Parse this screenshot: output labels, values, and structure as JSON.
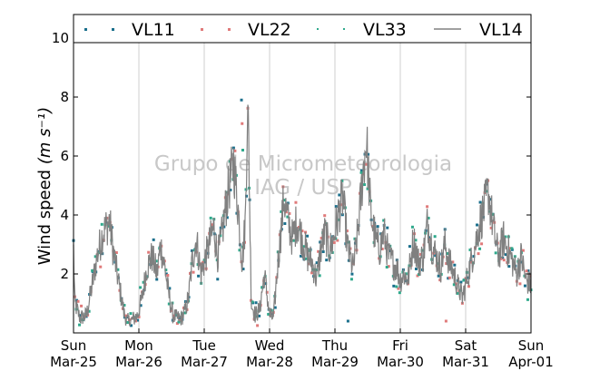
{
  "chart_data": {
    "type": "scatter",
    "title": "",
    "ylabel": "Wind speed",
    "ylabel_unit": "(m s⁻¹)",
    "ylim": [
      0,
      10.8
    ],
    "yticks": [
      2,
      4,
      6,
      8,
      10
    ],
    "xlim": [
      0,
      7
    ],
    "x_ticks": [
      {
        "x": 0,
        "day": "Sun",
        "date": "Mar-25"
      },
      {
        "x": 1,
        "day": "Mon",
        "date": "Mar-26"
      },
      {
        "x": 2,
        "day": "Tue",
        "date": "Mar-27"
      },
      {
        "x": 3,
        "day": "Wed",
        "date": "Mar-28"
      },
      {
        "x": 4,
        "day": "Thu",
        "date": "Mar-29"
      },
      {
        "x": 5,
        "day": "Fri",
        "date": "Mar-30"
      },
      {
        "x": 6,
        "day": "Sat",
        "date": "Mar-31"
      },
      {
        "x": 7,
        "day": "Sun",
        "date": "Apr-01"
      }
    ],
    "grid": "vertical",
    "legend_position": "top",
    "watermark": [
      "Grupo de Micrometeorologia",
      "IAG / USP"
    ],
    "series": [
      {
        "name": "VL11",
        "style": "dots",
        "color": "#1a6f8c"
      },
      {
        "name": "VL22",
        "style": "dots",
        "color": "#e07a7a"
      },
      {
        "name": "VL33",
        "style": "dots",
        "color": "#2fa98c"
      },
      {
        "name": "VL14",
        "style": "line",
        "color": "#808080"
      }
    ],
    "profile_x": [
      0,
      0.02,
      0.1,
      0.2,
      0.3,
      0.36,
      0.45,
      0.55,
      0.62,
      0.7,
      0.78,
      0.82,
      0.88,
      0.93,
      0.98,
      1.05,
      1.12,
      1.2,
      1.28,
      1.33,
      1.4,
      1.45,
      1.52,
      1.58,
      1.65,
      1.7,
      1.76,
      1.82,
      1.88,
      1.95,
      2.05,
      2.15,
      2.2,
      2.25,
      2.35,
      2.45,
      2.52,
      2.58,
      2.63,
      2.66,
      2.68,
      2.72,
      2.78,
      2.85,
      2.92,
      3.0,
      3.06,
      3.12,
      3.18,
      3.22,
      3.28,
      3.35,
      3.42,
      3.5,
      3.58,
      3.65,
      3.72,
      3.78,
      3.85,
      3.92,
      3.98,
      4.05,
      4.12,
      4.2,
      4.28,
      4.35,
      4.42,
      4.48,
      4.55,
      4.62,
      4.68,
      4.75,
      4.82,
      4.88,
      4.95,
      5.0,
      5.05,
      5.12,
      5.2,
      5.28,
      5.35,
      5.42,
      5.48,
      5.55,
      5.62,
      5.68,
      5.75,
      5.82,
      5.88,
      5.95,
      6.02,
      6.08,
      6.15,
      6.2,
      6.28,
      6.35,
      6.42,
      6.5,
      6.58,
      6.65,
      6.72,
      6.78,
      6.85,
      6.92,
      7.0
    ],
    "profile_y": [
      2.8,
      1.0,
      0.5,
      0.6,
      1.8,
      2.6,
      3.4,
      3.8,
      2.6,
      1.6,
      0.6,
      0.4,
      0.4,
      0.5,
      0.6,
      1.2,
      2.2,
      2.6,
      2.0,
      3.0,
      2.2,
      1.4,
      0.6,
      0.5,
      0.5,
      0.7,
      1.2,
      2.5,
      3.2,
      2.0,
      2.8,
      3.6,
      2.6,
      3.0,
      4.6,
      5.8,
      4.2,
      2.4,
      3.8,
      7.6,
      6.6,
      1.0,
      0.6,
      0.8,
      2.0,
      0.6,
      0.5,
      2.2,
      3.6,
      4.6,
      3.8,
      3.2,
      3.8,
      3.2,
      2.6,
      2.4,
      1.8,
      2.8,
      3.4,
      2.8,
      3.2,
      4.0,
      4.6,
      2.8,
      2.2,
      3.4,
      5.2,
      6.6,
      4.0,
      3.2,
      2.8,
      3.4,
      2.6,
      2.4,
      2.2,
      1.8,
      2.0,
      1.8,
      3.2,
      2.4,
      2.6,
      3.8,
      3.0,
      2.6,
      2.2,
      3.0,
      2.4,
      2.0,
      1.6,
      1.2,
      1.8,
      2.4,
      3.0,
      3.6,
      4.2,
      4.8,
      3.6,
      2.6,
      3.2,
      2.8,
      2.4,
      2.0,
      2.6,
      1.8,
      1.6
    ],
    "isolated_points": [
      [
        2.57,
        7.9
      ],
      [
        2.58,
        7.1
      ],
      [
        2.59,
        6.2
      ],
      [
        4.2,
        0.4
      ],
      [
        5.7,
        0.4
      ]
    ]
  }
}
